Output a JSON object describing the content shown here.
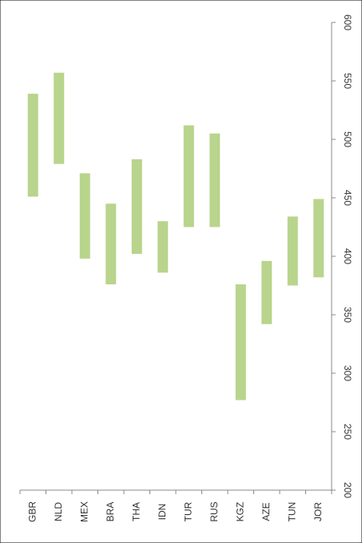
{
  "chart_data": {
    "type": "floating-bar",
    "orientation": "rotated",
    "categories": [
      "GBR",
      "NLD",
      "MEX",
      "BRA",
      "THA",
      "IDN",
      "TUR",
      "RUS",
      "KGZ",
      "AZE",
      "TUN",
      "JOR"
    ],
    "low": [
      451,
      479,
      398,
      376,
      402,
      386,
      425,
      425,
      277,
      342,
      375,
      382
    ],
    "high": [
      539,
      557,
      471,
      445,
      483,
      430,
      512,
      505,
      376,
      396,
      434,
      449
    ],
    "color": "#b9d48c",
    "ylim": [
      200,
      600
    ],
    "yticks": [
      200,
      250,
      300,
      350,
      400,
      450,
      500,
      550,
      600
    ],
    "grid": false
  }
}
